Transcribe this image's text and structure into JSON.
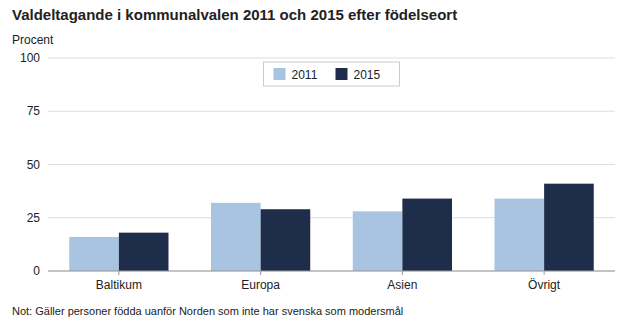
{
  "chart_data": {
    "type": "bar",
    "title": "Valdeltagande i kommunalvalen 2011 och 2015 efter födelseort",
    "ylabel": "Procent",
    "categories": [
      "Baltikum",
      "Europa",
      "Asien",
      "Övrigt"
    ],
    "series": [
      {
        "name": "2011",
        "color": "#a8c4e0",
        "values": [
          16,
          32,
          28,
          34
        ]
      },
      {
        "name": "2015",
        "color": "#1e2d4a",
        "values": [
          18,
          29,
          34,
          41
        ]
      }
    ],
    "ylim": [
      0,
      100
    ],
    "yticks": [
      0,
      25,
      50,
      75,
      100
    ],
    "grid": true,
    "legend": "upper center",
    "annotations": [
      "Not: Gäller personer födda uanför Norden som inte har svenska som modersmål"
    ]
  }
}
